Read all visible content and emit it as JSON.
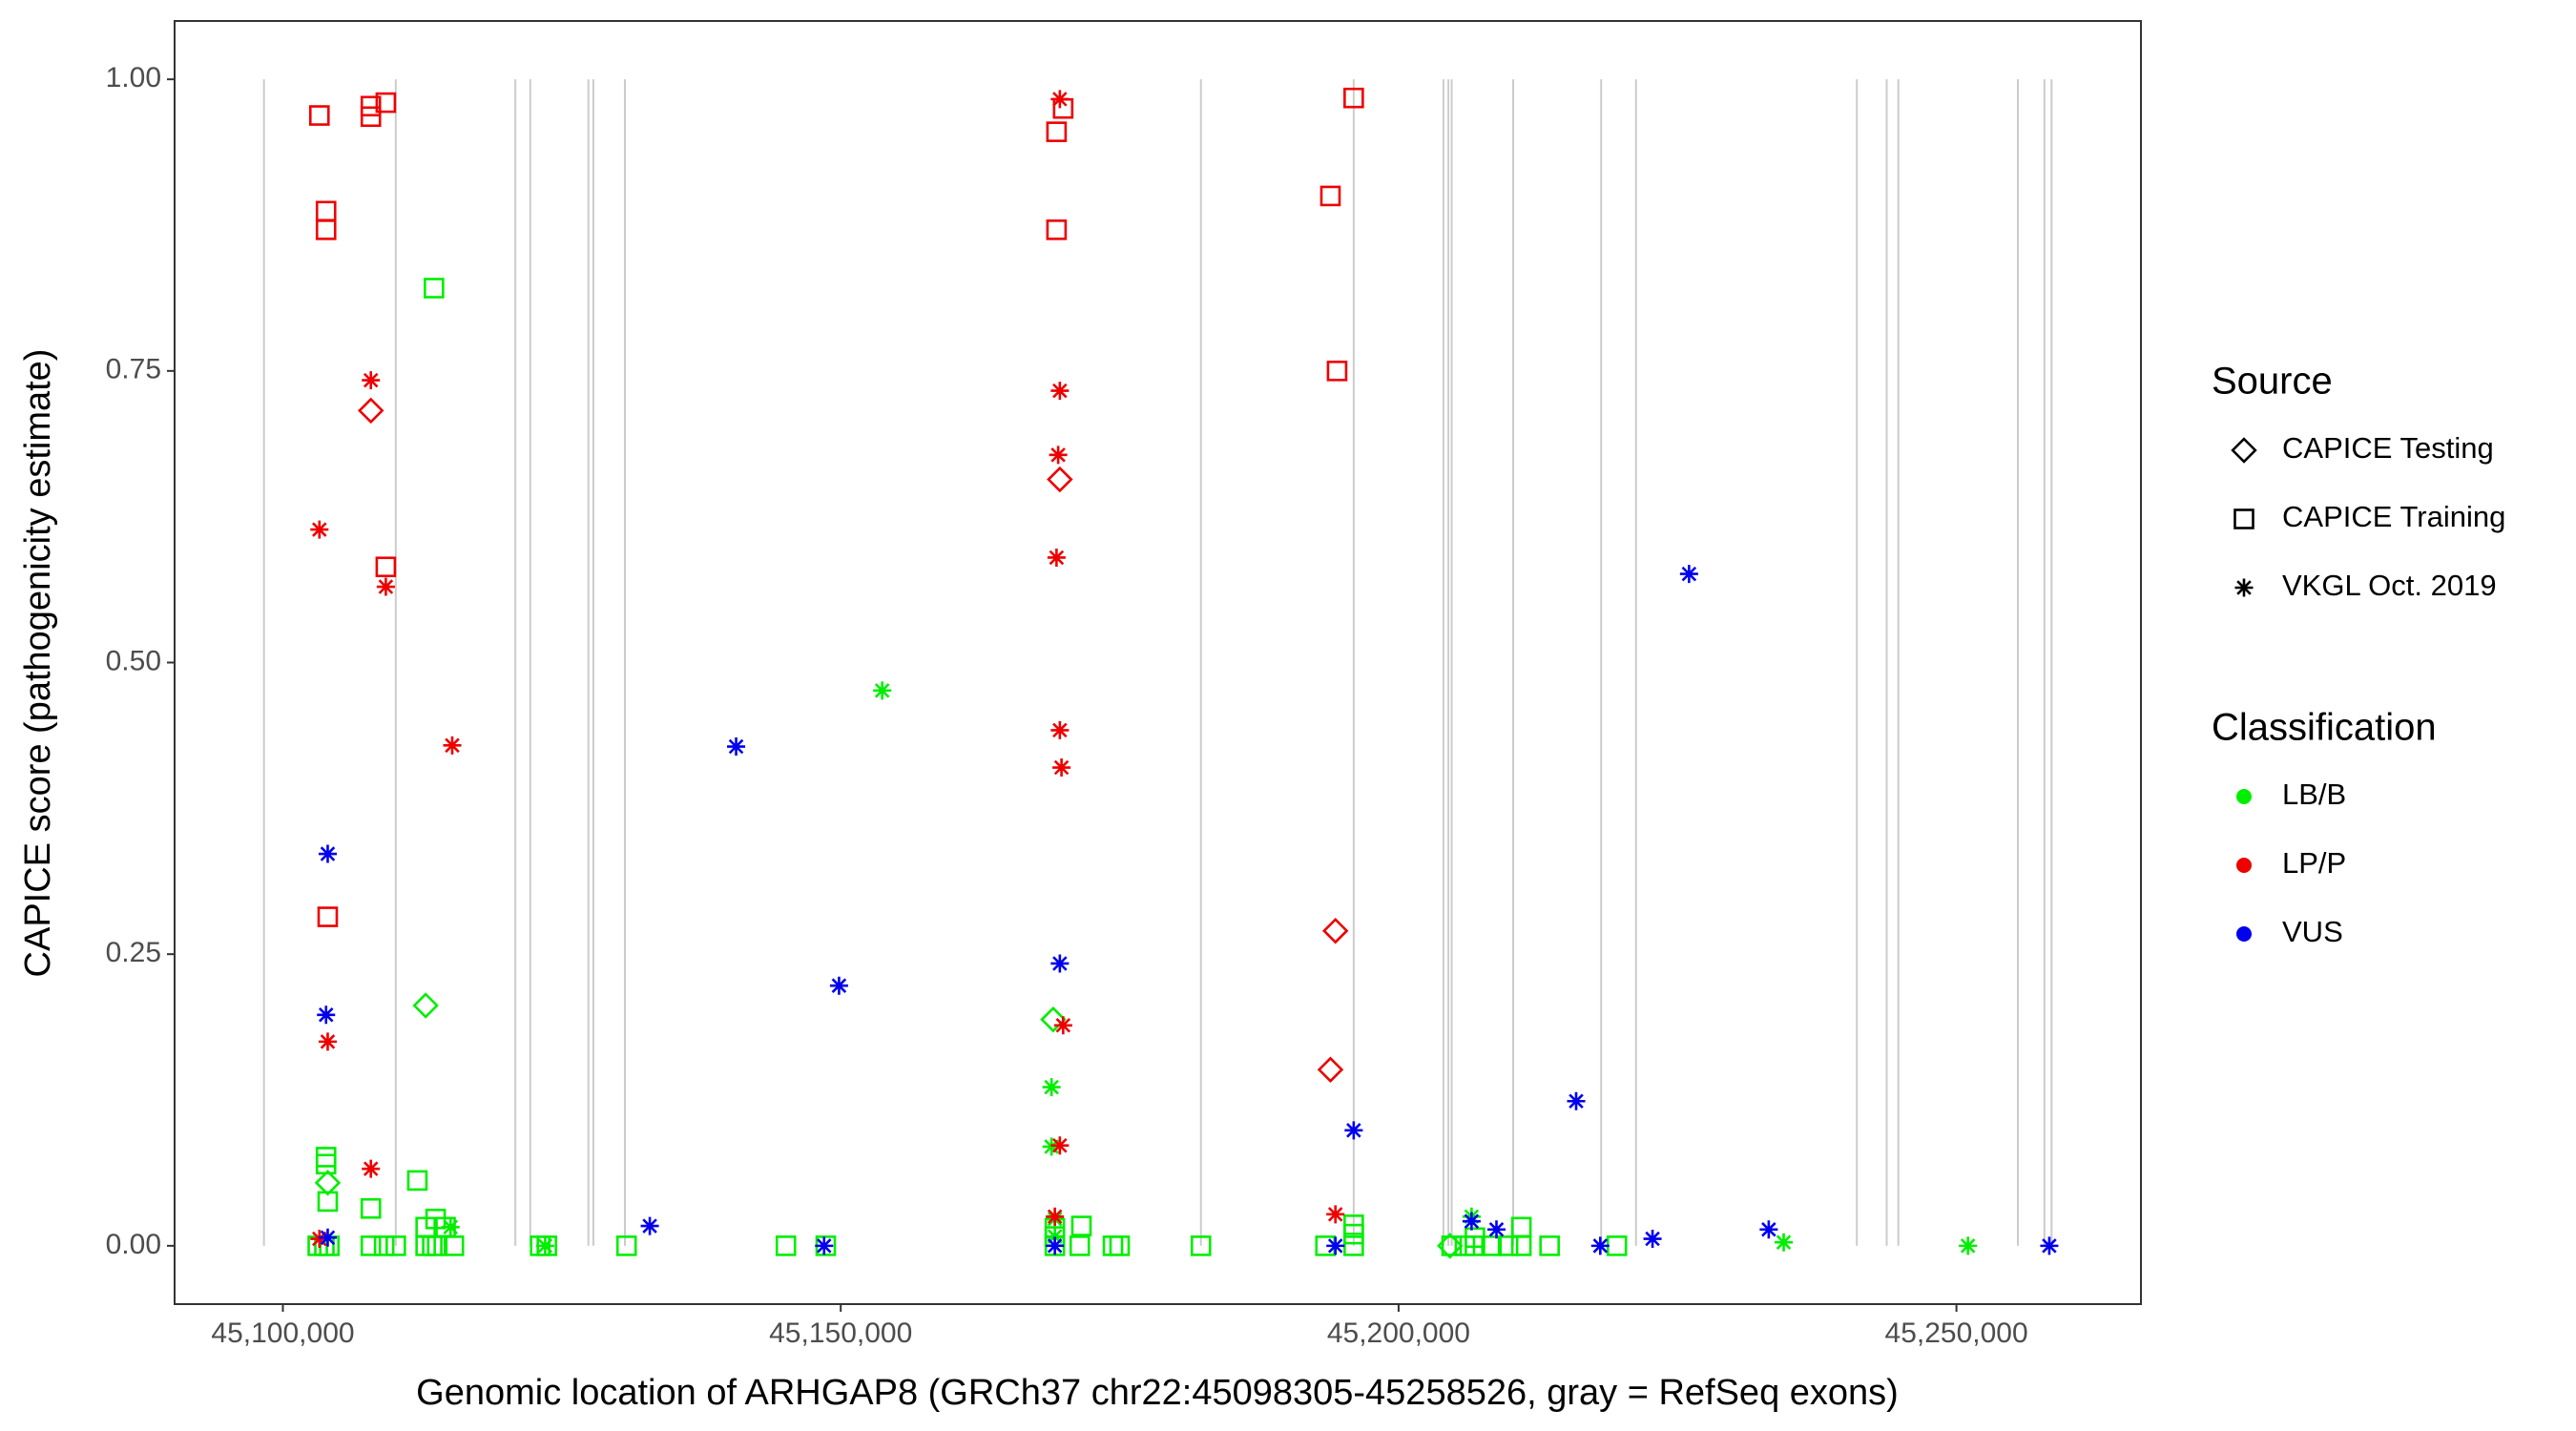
{
  "chart_data": {
    "type": "scatter",
    "x_label": "Genomic location of ARHGAP8 (GRCh37 chr22:45098305-45258526, gray = RefSeq exons)",
    "y_label": "CAPICE score (pathogenicity estimate)",
    "xlim": [
      45090294,
      45266537
    ],
    "ylim": [
      -0.05,
      1.05
    ],
    "xticks": [
      {
        "value": 45100000,
        "label": "45,100,000"
      },
      {
        "value": 45150000,
        "label": "45,150,000"
      },
      {
        "value": 45200000,
        "label": "45,200,000"
      },
      {
        "value": 45250000,
        "label": "45,250,000"
      }
    ],
    "yticks": [
      {
        "value": 0,
        "label": "0.00"
      },
      {
        "value": 0.25,
        "label": "0.25"
      },
      {
        "value": 0.5,
        "label": "0.50"
      },
      {
        "value": 0.75,
        "label": "0.75"
      },
      {
        "value": 1,
        "label": "1.00"
      }
    ],
    "exon_color": "#cccccc",
    "exons": [
      45098305,
      45110118,
      45120833,
      45122173,
      45127381,
      45127827,
      45130655,
      45182286,
      45195976,
      45204018,
      45204464,
      45204762,
      45210268,
      45218155,
      45221280,
      45241071,
      45243750,
      45244792,
      45255506,
      45257887,
      45258526
    ],
    "source_title": "Source",
    "classification_title": "Classification",
    "classifications": [
      {
        "name": "LB/B",
        "color": "#00ee00"
      },
      {
        "name": "LP/P",
        "color": "#ee0000"
      },
      {
        "name": "VUS",
        "color": "#0000ee"
      }
    ],
    "series": [
      {
        "name": "CAPICE Testing",
        "shape": "diamond",
        "groups": [
          {
            "x": [
              45104018,
              45112797,
              45169043,
              45204606
            ],
            "values": [
              0.054,
              0.206,
              0.194,
              0
            ]
          },
          {
            "x": [
              45107886,
              45169638,
              45194339,
              45193893
            ],
            "values": [
              0.716,
              0.657,
              0.27,
              0.151
            ]
          },
          {
            "x": [],
            "values": []
          }
        ]
      },
      {
        "name": "CAPICE Training",
        "shape": "square",
        "groups": [
          {
            "x": [
              45113541,
              45103869,
              45103869,
              45104018,
              45112053,
              45107886,
              45103125,
              45103720,
              45104166,
              45107886,
              45109077,
              45110118,
              45112797,
              45113392,
              45113838,
              45115326,
              45123064,
              45123659,
              45130802,
              45145086,
              45148658,
              45169192,
              45171424,
              45174400,
              45174995,
              45182286,
              45193446,
              45195976,
              45204755,
              45205946,
              45206838,
              45208326,
              45209814,
              45211005,
              45213534,
              45219566,
              45112797,
              45113690,
              45114582,
              45171573,
              45195976,
              45195976,
              45211005,
              45206838,
              45169192,
              45169192
            ],
            "values": [
              0.821,
              0.076,
              0.07,
              0.038,
              0.056,
              0.032,
              0,
              0,
              0,
              0,
              0,
              0,
              0,
              0,
              0,
              0,
              0,
              0,
              0,
              0,
              0,
              0,
              0,
              0,
              0,
              0,
              0,
              0,
              0,
              0,
              0,
              0,
              0,
              0,
              0,
              0,
              0.016,
              0.023,
              0.016,
              0.017,
              0.018,
              0.01,
              0.016,
              0.007,
              0.008,
              0.015
            ]
          },
          {
            "x": [
              45103274,
              45107886,
              45107886,
              45109226,
              45103869,
              45103869,
              45109226,
              45104018,
              45169341,
              45169936,
              45169341,
              45195976,
              45193893,
              45194488
            ],
            "values": [
              0.969,
              0.977,
              0.968,
              0.98,
              0.887,
              0.871,
              0.582,
              0.282,
              0.955,
              0.975,
              0.871,
              0.984,
              0.9,
              0.75
            ]
          },
          {
            "x": [],
            "values": []
          }
        ]
      },
      {
        "name": "VKGL Oct. 2019",
        "shape": "asterisk",
        "groups": [
          {
            "x": [
              45153717,
              45168894,
              45168894,
              45115029,
              45206541,
              45234515,
              45251032,
              45123510,
              45169192,
              45169192
            ],
            "values": [
              0.476,
              0.136,
              0.085,
              0.016,
              0.025,
              0.003,
              0,
              0,
              0.023,
              0.008
            ]
          },
          {
            "x": [
              45103274,
              45107886,
              45109226,
              45115178,
              45104018,
              45107886,
              45169638,
              45169638,
              45169490,
              45169341,
              45169638,
              45169787,
              45169936,
              45169638,
              45169192,
              45194339,
              45103274
            ],
            "values": [
              0.614,
              0.742,
              0.565,
              0.429,
              0.175,
              0.066,
              0.983,
              0.733,
              0.678,
              0.59,
              0.442,
              0.41,
              0.189,
              0.086,
              0.025,
              0.027,
              0.006
            ]
          },
          {
            "x": [
              45104018,
              45103869,
              45104018,
              45140622,
              45149848,
              45132885,
              45148509,
              45169638,
              45169192,
              45226034,
              45215915,
              45195976,
              45194339,
              45208773,
              45218078,
              45222760,
              45233176,
              45258323,
              45206541
            ],
            "values": [
              0.336,
              0.198,
              0.007,
              0.428,
              0.223,
              0.017,
              0,
              0.242,
              0,
              0.576,
              0.124,
              0.099,
              0,
              0.014,
              0,
              0.006,
              0.014,
              0,
              0.021
            ]
          }
        ]
      }
    ]
  }
}
